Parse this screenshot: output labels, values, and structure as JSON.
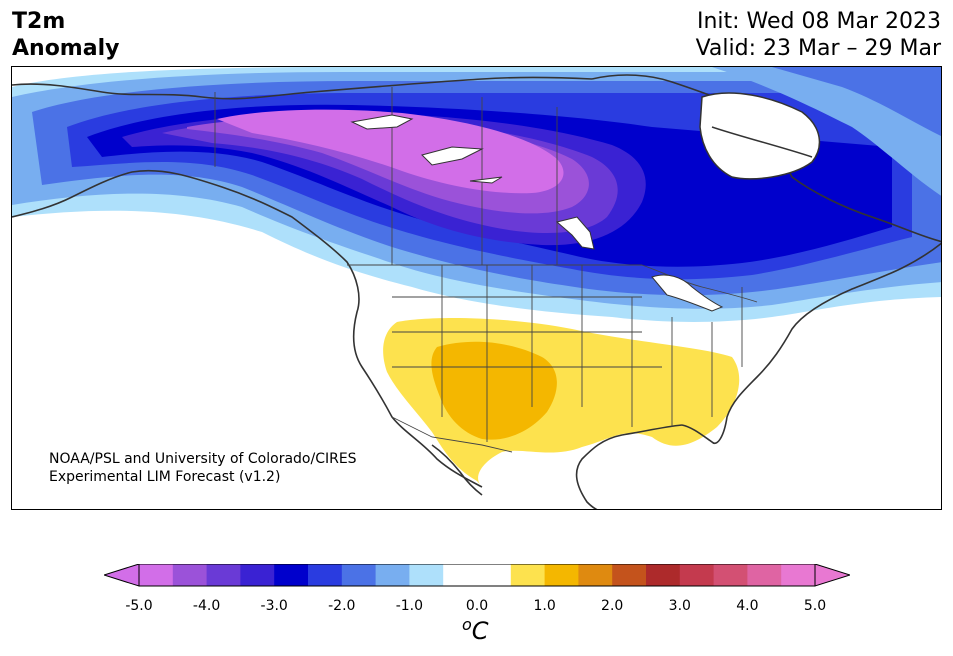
{
  "header": {
    "title_line1": "T2m",
    "title_line2": "Anomaly",
    "init": "Init: Wed 08 Mar 2023",
    "valid": "Valid: 23 Mar – 29 Mar"
  },
  "credit": {
    "line1": "NOAA/PSL and University of Colorado/CIRES",
    "line2": "Experimental LIM Forecast (v1.2)"
  },
  "colorbar": {
    "unit_base": "C",
    "unit_sup": "o",
    "colors": [
      "#d26ee8",
      "#9b52d9",
      "#6a3ad6",
      "#3a22d3",
      "#0000cc",
      "#2a3ce0",
      "#4b72e6",
      "#78aef0",
      "#aee0fb",
      "#ffffff",
      "#ffffff",
      "#fde24e",
      "#f4b700",
      "#df8a10",
      "#c4531c",
      "#ad2a2b",
      "#c43a4e",
      "#d35073",
      "#df64a3",
      "#e878d2"
    ],
    "ticks": [
      "-5.0",
      "-4.0",
      "-3.0",
      "-2.0",
      "-1.0",
      "0.0",
      "1.0",
      "2.0",
      "3.0",
      "4.0",
      "5.0"
    ],
    "under_color": "#d26ee8",
    "over_color": "#e878d2"
  }
}
